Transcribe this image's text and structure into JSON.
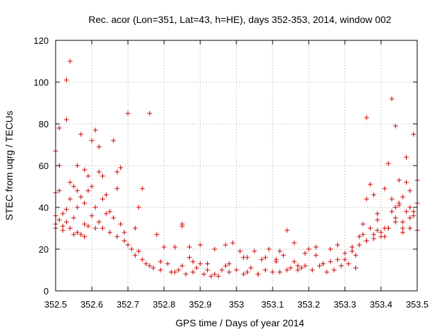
{
  "chart_data": {
    "type": "scatter",
    "title": "Rec. acor (Lon=351, Lat=43, h=HE), days 352-353, 2014, window 002",
    "xlabel": "GPS time / Days of year 2014",
    "ylabel": "STEC from uqrg / TECUs",
    "xlim": [
      352.5,
      353.5
    ],
    "ylim": [
      0,
      120
    ],
    "xticks": [
      352.5,
      352.6,
      352.7,
      352.8,
      352.9,
      353,
      353.1,
      353.2,
      353.3,
      353.4,
      353.5
    ],
    "xtick_labels": [
      "352.5",
      "352.6",
      "352.7",
      "352.8",
      "352.9",
      "353",
      "353.1",
      "353.2",
      "353.3",
      "353.4",
      "353.5"
    ],
    "yticks": [
      0,
      20,
      40,
      60,
      80,
      100,
      120
    ],
    "ytick_labels": [
      "0",
      "20",
      "40",
      "60",
      "80",
      "100",
      "120"
    ],
    "grid": true,
    "marker": "+",
    "color": "#cc0000",
    "series": [
      {
        "name": "STEC",
        "x": [
          352.5,
          352.5,
          352.5,
          352.5,
          352.5,
          352.51,
          352.51,
          352.51,
          352.51,
          352.52,
          352.52,
          352.52,
          352.53,
          352.53,
          352.53,
          352.53,
          352.54,
          352.54,
          352.54,
          352.54,
          352.55,
          352.55,
          352.55,
          352.56,
          352.56,
          352.56,
          352.56,
          352.57,
          352.57,
          352.57,
          352.58,
          352.58,
          352.58,
          352.58,
          352.59,
          352.59,
          352.59,
          352.6,
          352.6,
          352.6,
          352.61,
          352.61,
          352.61,
          352.62,
          352.62,
          352.62,
          352.63,
          352.63,
          352.63,
          352.64,
          352.64,
          352.65,
          352.65,
          352.66,
          352.66,
          352.67,
          352.67,
          352.67,
          352.68,
          352.68,
          352.69,
          352.69,
          352.7,
          352.7,
          352.71,
          352.72,
          352.72,
          352.73,
          352.73,
          352.74,
          352.74,
          352.75,
          352.76,
          352.77,
          352.78,
          352.79,
          352.8,
          352.81,
          352.82,
          352.83,
          352.84,
          352.85,
          352.86,
          352.87,
          352.88,
          352.89,
          352.9,
          352.91,
          352.92,
          352.93,
          352.94,
          352.95,
          352.96,
          352.97,
          352.98,
          352.99,
          353.01,
          353.02,
          353.03,
          353.04,
          353.05,
          353.06,
          353.07,
          353.08,
          353.09,
          353.1,
          353.11,
          353.12,
          353.13,
          353.14,
          353.15,
          353.16,
          353.17,
          353.18,
          353.19,
          353.2,
          353.21,
          353.22,
          353.23,
          353.24,
          353.25,
          353.26,
          353.27,
          353.28,
          353.29,
          353.3,
          353.31,
          353.32,
          353.33,
          353.34,
          353.35,
          353.36,
          353.37,
          353.38,
          353.39,
          353.4,
          353.41,
          353.42,
          353.43,
          353.44,
          353.45,
          353.46,
          353.47,
          353.48,
          353.49,
          353.5,
          353.49,
          353.48,
          353.47,
          353.46,
          353.45,
          353.44,
          353.43,
          353.42,
          353.41,
          353.4,
          353.39,
          353.38,
          353.37,
          353.36,
          353.35,
          353.44,
          353.46,
          353.48,
          353.45,
          353.43,
          353.47,
          353.5,
          353.49,
          353.41,
          353.39,
          353.36,
          353.38,
          353.42,
          353.44,
          353.5,
          353.36,
          353.48,
          353.46,
          352.85,
          352.85,
          352.98,
          353.14,
          353.02,
          353.22,
          353.12,
          352.88,
          352.92,
          353.32,
          353.28,
          353.06,
          353.16,
          353.26,
          353.34,
          352.76,
          352.79,
          352.83,
          352.87,
          352.9,
          352.94,
          352.97,
          353.0,
          353.03,
          353.08,
          353.11,
          353.17,
          353.19,
          353.24,
          353.3,
          353.33
        ],
        "y": [
          67,
          47,
          36,
          32,
          30,
          78,
          60,
          48,
          34,
          37,
          31,
          29,
          101,
          82,
          39,
          33,
          110,
          52,
          44,
          30,
          50,
          35,
          27,
          60,
          48,
          40,
          28,
          75,
          45,
          27,
          58,
          42,
          32,
          26,
          55,
          48,
          31,
          72,
          50,
          36,
          77,
          40,
          30,
          69,
          57,
          33,
          55,
          44,
          30,
          46,
          37,
          38,
          28,
          72,
          35,
          57,
          49,
          26,
          59,
          32,
          28,
          24,
          85,
          22,
          20,
          30,
          17,
          40,
          19,
          49,
          15,
          13,
          85,
          11,
          27,
          10,
          21,
          13,
          9,
          21,
          10,
          12,
          8,
          21,
          9,
          11,
          22,
          8,
          13,
          7,
          20,
          7,
          10,
          22,
          9,
          23,
          19,
          8,
          16,
          11,
          19,
          8,
          15,
          10,
          20,
          9,
          14,
          9,
          17,
          29,
          11,
          23,
          10,
          11,
          12,
          20,
          10,
          21,
          12,
          13,
          9,
          14,
          10,
          15,
          12,
          18,
          13,
          21,
          17,
          22,
          27,
          24,
          30,
          25,
          34,
          28,
          49,
          30,
          92,
          35,
          42,
          30,
          64,
          30,
          75,
          29,
          38,
          35,
          52,
          28,
          53,
          79,
          38,
          61,
          30,
          26,
          37,
          46,
          51,
          83,
          32,
          33,
          45,
          48,
          41,
          44,
          38,
          53,
          36,
          26,
          29,
          44,
          27,
          30,
          40,
          42,
          24,
          40,
          33,
          32,
          31,
          13,
          10,
          16,
          17,
          19,
          14,
          10,
          19,
          22,
          8,
          14,
          20,
          26,
          12,
          14,
          9,
          16,
          13,
          8,
          12,
          10,
          9,
          16,
          15,
          12,
          18,
          13,
          15,
          11
        ]
      }
    ]
  }
}
